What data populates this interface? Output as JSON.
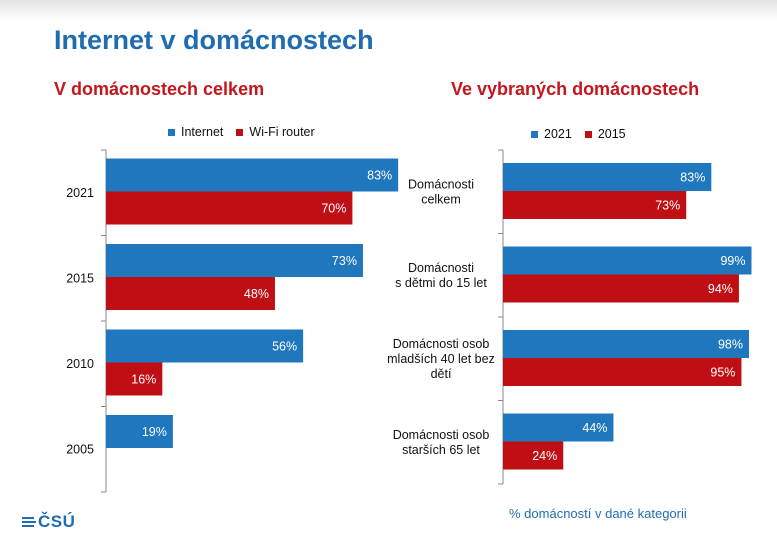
{
  "slide": {
    "title": "Internet v domácnostech",
    "footnote": "% domácností v dané kategorii",
    "logo": "ČSÚ"
  },
  "colors": {
    "blue": "#1f77be",
    "red": "#c00f14",
    "title_blue": "#1f6db0",
    "subtitle_red": "#c4161c"
  },
  "chart_data": [
    {
      "type": "bar",
      "orientation": "horizontal",
      "title": "V domácnostech celkem",
      "categories": [
        "2021",
        "2015",
        "2010",
        "2005"
      ],
      "series": [
        {
          "name": "Internet",
          "color": "#1f77be",
          "values": [
            83,
            73,
            56,
            19
          ],
          "labels": [
            "83%",
            "73%",
            "56%",
            "19%"
          ]
        },
        {
          "name": "Wi-Fi router",
          "color": "#c00f14",
          "values": [
            70,
            48,
            16,
            null
          ],
          "labels": [
            "70%",
            "48%",
            "16%",
            ""
          ]
        }
      ],
      "xlim": [
        0,
        100
      ],
      "grid": false,
      "legend": "top"
    },
    {
      "type": "bar",
      "orientation": "horizontal",
      "title": "Ve vybraných domácnostech",
      "categories": [
        [
          "Domácnosti",
          "celkem"
        ],
        [
          "Domácnosti",
          "s dětmi do 15 let"
        ],
        [
          "Domácnosti osob",
          "mladších 40 let bez",
          "dětí"
        ],
        [
          "Domácnosti osob",
          "starších 65 let"
        ]
      ],
      "series": [
        {
          "name": "2021",
          "color": "#1f77be",
          "values": [
            83,
            99,
            98,
            44
          ],
          "labels": [
            "83%",
            "99%",
            "98%",
            "44%"
          ]
        },
        {
          "name": "2015",
          "color": "#c00f14",
          "values": [
            73,
            94,
            95,
            24
          ],
          "labels": [
            "73%",
            "94%",
            "95%",
            "24%"
          ]
        }
      ],
      "xlim": [
        0,
        100
      ],
      "grid": false,
      "legend": "top"
    }
  ]
}
